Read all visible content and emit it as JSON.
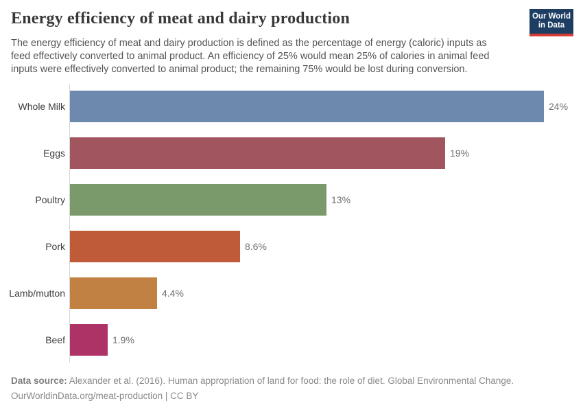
{
  "header": {
    "title": "Energy efficiency of meat and dairy production",
    "subtitle": "The energy efficiency of meat and dairy production is defined as the percentage of energy (caloric) inputs as feed effectively converted to animal product. An efficiency of 25% would mean 25% of calories in animal feed inputs were effectively converted to animal product; the remaining 75% would be lost during conversion.",
    "logo": {
      "line1": "Our World",
      "line2": "in Data",
      "bg_color": "#1d3d63",
      "accent_color": "#d73c34"
    }
  },
  "chart_data": {
    "type": "bar",
    "orientation": "horizontal",
    "title": "Energy efficiency of meat and dairy production",
    "categories": [
      "Whole Milk",
      "Eggs",
      "Poultry",
      "Pork",
      "Lamb/mutton",
      "Beef"
    ],
    "values": [
      24,
      19,
      13,
      8.6,
      4.4,
      1.9
    ],
    "value_labels": [
      "24%",
      "19%",
      "13%",
      "8.6%",
      "4.4%",
      "1.9%"
    ],
    "bar_colors": [
      "#6d89ad",
      "#a0555f",
      "#7a9a6c",
      "#bf5b38",
      "#c08143",
      "#ad3366"
    ],
    "unit": "%",
    "xlim": [
      0,
      24
    ],
    "grid": false,
    "legend": false,
    "axis_line_color": "#d6d6d6"
  },
  "footer": {
    "source_label": "Data source:",
    "source_text": " Alexander et al. (2016). Human appropriation of land for food: the role of diet. Global Environmental Change.",
    "attribution": "OurWorldinData.org/meat-production | CC BY"
  }
}
